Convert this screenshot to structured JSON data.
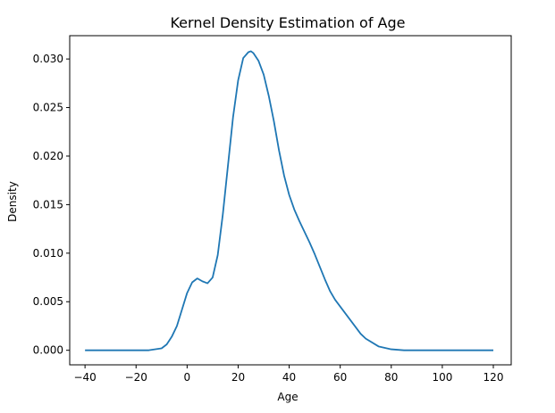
{
  "chart_data": {
    "type": "line",
    "title": "Kernel Density Estimation of Age",
    "xlabel": "Age",
    "ylabel": "Density",
    "xlim": [
      -46,
      127
    ],
    "ylim": [
      -0.0015,
      0.0324
    ],
    "x_ticks": [
      -40,
      -20,
      0,
      20,
      40,
      60,
      80,
      100,
      120
    ],
    "x_tick_labels": [
      "−40",
      "−20",
      "0",
      "20",
      "40",
      "60",
      "80",
      "100",
      "120"
    ],
    "y_ticks": [
      0.0,
      0.005,
      0.01,
      0.015,
      0.02,
      0.025,
      0.03
    ],
    "y_tick_labels": [
      "0.000",
      "0.005",
      "0.010",
      "0.015",
      "0.020",
      "0.025",
      "0.030"
    ],
    "grid": false,
    "line_color": "#1f77b4",
    "series": [
      {
        "x": [
          -40,
          -30,
          -20,
          -15,
          -10,
          -8,
          -6,
          -4,
          -2,
          0,
          2,
          4,
          6,
          8,
          10,
          12,
          14,
          16,
          18,
          20,
          22,
          24,
          25,
          26,
          28,
          30,
          32,
          34,
          36,
          38,
          40,
          42,
          44,
          46,
          48,
          50,
          52,
          54,
          56,
          58,
          60,
          62,
          64,
          66,
          68,
          70,
          75,
          80,
          85,
          90,
          100,
          110,
          120
        ],
        "y": [
          0.0,
          0.0,
          0.0,
          0.0,
          0.0002,
          0.0006,
          0.0014,
          0.0025,
          0.0042,
          0.0059,
          0.007,
          0.0074,
          0.0071,
          0.0069,
          0.0075,
          0.0098,
          0.014,
          0.019,
          0.024,
          0.0278,
          0.0301,
          0.0307,
          0.0308,
          0.0306,
          0.0298,
          0.0284,
          0.0262,
          0.0236,
          0.0206,
          0.018,
          0.016,
          0.0145,
          0.0133,
          0.0122,
          0.0111,
          0.0099,
          0.0086,
          0.0073,
          0.0061,
          0.0052,
          0.0045,
          0.0038,
          0.0031,
          0.0024,
          0.0017,
          0.0012,
          0.0004,
          0.0001,
          0.0,
          0.0,
          0.0,
          0.0,
          0.0
        ]
      }
    ]
  }
}
